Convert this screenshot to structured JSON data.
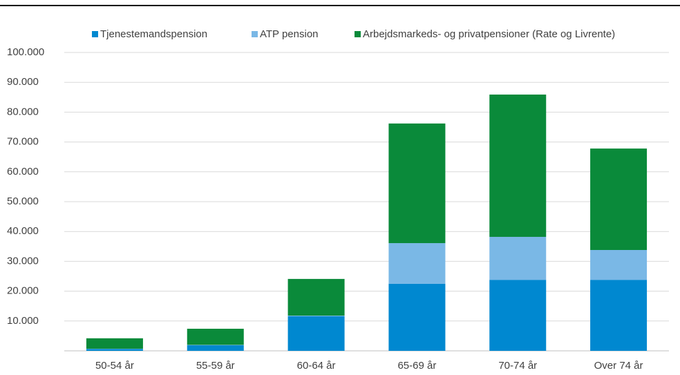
{
  "chart_data": {
    "type": "stacked_bar",
    "categories": [
      "50-54 år",
      "55-59 år",
      "60-64 år",
      "65-69 år",
      "70-74 år",
      "Over 74 år"
    ],
    "series": [
      {
        "name": "Tjenestemandspension",
        "color": "#0088d0",
        "values": [
          600,
          1900,
          11600,
          22500,
          23800,
          23800
        ]
      },
      {
        "name": "ATP pension",
        "color": "#7ab8e6",
        "values": [
          100,
          100,
          200,
          13600,
          14400,
          10000
        ]
      },
      {
        "name": "Arbejdsmarkeds- og privatpensioner (Rate og Livrente)",
        "color": "#0a8a3a",
        "values": [
          3500,
          5400,
          12300,
          40100,
          47700,
          34000
        ]
      }
    ],
    "ylim": [
      0,
      100000
    ],
    "yticks": [
      {
        "value": 10000,
        "label": "10.000"
      },
      {
        "value": 20000,
        "label": "20.000"
      },
      {
        "value": 30000,
        "label": "30.000"
      },
      {
        "value": 40000,
        "label": "40.000"
      },
      {
        "value": 50000,
        "label": "50.000"
      },
      {
        "value": 60000,
        "label": "60.000"
      },
      {
        "value": 70000,
        "label": "70.000"
      },
      {
        "value": 80000,
        "label": "80.000"
      },
      {
        "value": 90000,
        "label": "90.000"
      },
      {
        "value": 100000,
        "label": "100.000"
      }
    ],
    "grid": true,
    "legend": "top"
  }
}
